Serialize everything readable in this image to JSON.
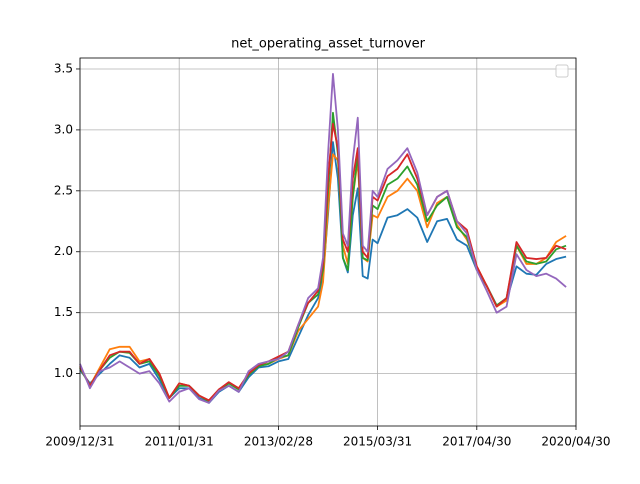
{
  "chart_data": {
    "type": "line",
    "title": "net_operating_asset_turnover",
    "x": [
      0,
      2,
      4,
      6,
      8,
      10,
      12,
      14,
      16,
      18,
      20,
      22,
      24,
      26,
      28,
      30,
      32,
      34,
      36,
      38,
      40,
      42,
      44,
      46,
      48,
      49,
      50,
      51,
      52,
      53,
      54,
      55,
      56,
      57,
      58,
      59,
      60,
      62,
      64,
      66,
      68,
      70,
      72,
      74,
      76,
      78,
      80,
      82,
      84,
      86,
      88,
      90,
      92,
      94,
      96,
      98
    ],
    "series": [
      {
        "color": "#1f77b4",
        "values": [
          1.03,
          0.92,
          1.0,
          1.08,
          1.15,
          1.13,
          1.05,
          1.08,
          0.95,
          0.8,
          0.88,
          0.88,
          0.8,
          0.76,
          0.85,
          0.9,
          0.85,
          0.97,
          1.05,
          1.06,
          1.1,
          1.12,
          1.3,
          1.48,
          1.62,
          1.8,
          2.3,
          2.9,
          2.6,
          1.95,
          1.83,
          2.3,
          2.52,
          1.8,
          1.78,
          2.1,
          2.07,
          2.28,
          2.3,
          2.35,
          2.28,
          2.08,
          2.25,
          2.27,
          2.1,
          2.05,
          1.85,
          1.72,
          1.56,
          1.6,
          1.88,
          1.82,
          1.81,
          1.9,
          1.94,
          1.96
        ]
      },
      {
        "color": "#ff7f0e",
        "values": [
          1.05,
          0.9,
          1.05,
          1.2,
          1.22,
          1.22,
          1.1,
          1.12,
          1.0,
          0.8,
          0.92,
          0.9,
          0.82,
          0.78,
          0.87,
          0.92,
          0.88,
          1.0,
          1.07,
          1.08,
          1.12,
          1.15,
          1.35,
          1.45,
          1.55,
          1.75,
          2.35,
          2.8,
          2.75,
          2.05,
          1.9,
          2.45,
          2.75,
          1.95,
          1.92,
          2.3,
          2.28,
          2.45,
          2.5,
          2.6,
          2.5,
          2.2,
          2.4,
          2.45,
          2.22,
          2.1,
          1.88,
          1.72,
          1.55,
          1.6,
          2.05,
          1.9,
          1.9,
          1.95,
          2.08,
          2.13
        ]
      },
      {
        "color": "#2ca02c",
        "values": [
          1.05,
          0.9,
          1.03,
          1.13,
          1.18,
          1.17,
          1.08,
          1.1,
          0.98,
          0.8,
          0.9,
          0.9,
          0.82,
          0.77,
          0.86,
          0.92,
          0.87,
          0.99,
          1.06,
          1.08,
          1.13,
          1.15,
          1.38,
          1.58,
          1.65,
          1.85,
          2.5,
          3.14,
          2.8,
          1.95,
          1.85,
          2.45,
          2.8,
          1.95,
          1.93,
          2.38,
          2.35,
          2.55,
          2.6,
          2.7,
          2.55,
          2.25,
          2.38,
          2.45,
          2.2,
          2.12,
          1.85,
          1.72,
          1.56,
          1.62,
          2.05,
          1.92,
          1.9,
          1.92,
          2.02,
          2.05
        ]
      },
      {
        "color": "#d62728",
        "values": [
          1.06,
          0.9,
          1.03,
          1.15,
          1.18,
          1.18,
          1.08,
          1.12,
          1.0,
          0.8,
          0.92,
          0.9,
          0.82,
          0.78,
          0.87,
          0.93,
          0.88,
          1.0,
          1.07,
          1.1,
          1.14,
          1.18,
          1.4,
          1.58,
          1.68,
          1.9,
          2.6,
          3.05,
          2.85,
          2.1,
          2.0,
          2.6,
          2.85,
          2.0,
          1.95,
          2.45,
          2.42,
          2.62,
          2.68,
          2.8,
          2.6,
          2.3,
          2.45,
          2.5,
          2.25,
          2.18,
          1.88,
          1.72,
          1.55,
          1.62,
          2.08,
          1.95,
          1.94,
          1.95,
          2.05,
          2.02
        ]
      },
      {
        "color": "#9467bd",
        "values": [
          1.08,
          0.88,
          1.02,
          1.05,
          1.1,
          1.05,
          1.0,
          1.02,
          0.92,
          0.77,
          0.85,
          0.88,
          0.79,
          0.76,
          0.86,
          0.9,
          0.85,
          1.02,
          1.08,
          1.1,
          1.12,
          1.18,
          1.4,
          1.62,
          1.7,
          1.95,
          2.8,
          3.46,
          3.0,
          2.15,
          2.05,
          2.75,
          3.1,
          2.05,
          2.0,
          2.5,
          2.45,
          2.68,
          2.75,
          2.85,
          2.65,
          2.3,
          2.45,
          2.5,
          2.25,
          2.15,
          1.85,
          1.68,
          1.5,
          1.55,
          1.98,
          1.85,
          1.8,
          1.82,
          1.78,
          1.71
        ]
      }
    ],
    "xlim": [
      0,
      100
    ],
    "xticks": [
      {
        "value": 0,
        "label": "2009/12/31"
      },
      {
        "value": 20,
        "label": "2011/01/31"
      },
      {
        "value": 40,
        "label": "2013/02/28"
      },
      {
        "value": 60,
        "label": "2015/03/31"
      },
      {
        "value": 80,
        "label": "2017/04/30"
      },
      {
        "value": 100,
        "label": "2020/04/30"
      }
    ],
    "ylim": [
      0.57,
      3.59
    ],
    "yticks": [
      {
        "value": 1,
        "label": "1.0"
      },
      1.5,
      {
        "value": 2,
        "label": "2.0"
      },
      2.5,
      {
        "value": 3,
        "label": "3.0"
      },
      3.5
    ],
    "grid": true,
    "legend": "upper right"
  }
}
